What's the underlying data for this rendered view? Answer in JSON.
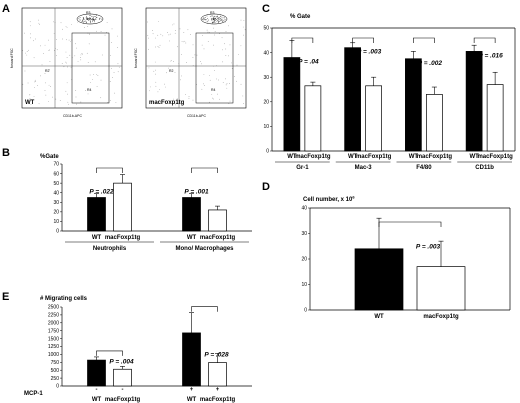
{
  "panels": {
    "A": {
      "letter": "A",
      "plots": [
        {
          "corner_label": "WT",
          "ylabel": "forward FSC",
          "xlabel": "CD11b-APC",
          "gate_top": "R3",
          "gate_left": "R2",
          "gate_box": "R4"
        },
        {
          "corner_label": "macFoxp1tg",
          "ylabel": "forward FSC",
          "xlabel": "CD11b-APC",
          "gate_top": "R3",
          "gate_left": "R2",
          "gate_box": "R4"
        }
      ]
    },
    "B": {
      "letter": "B",
      "y_title": "%Gate",
      "chart_data": {
        "type": "bar",
        "y_title": "%Gate",
        "ylim": [
          0,
          70
        ],
        "yticks": [
          "0",
          "10",
          "20",
          "30",
          "40",
          "50",
          "60",
          "70"
        ],
        "groups": [
          {
            "name": "Neutrophils",
            "labels": [
              "WT",
              "macFoxp1tg"
            ],
            "values": [
              35,
              50
            ],
            "errors": [
              4,
              9
            ],
            "pvalue": "P = .022"
          },
          {
            "name": "Mono/ Macrophages",
            "labels": [
              "WT",
              "macFoxp1tg"
            ],
            "values": [
              35,
              22
            ],
            "errors": [
              4,
              4
            ],
            "pvalue": "P = .001"
          }
        ]
      }
    },
    "C": {
      "letter": "C",
      "y_title": "% Gate",
      "chart_data": {
        "type": "bar",
        "y_title": "% Gate",
        "ylim": [
          0,
          50
        ],
        "yticks": [
          "0",
          "10",
          "20",
          "30",
          "40",
          "50"
        ],
        "groups": [
          {
            "name": "Gr-1",
            "labels": [
              "WT",
              "macFoxp1tg"
            ],
            "values": [
              38,
              26.5
            ],
            "errors": [
              7,
              1.5
            ],
            "pvalue": "P = .04"
          },
          {
            "name": "Mac-3",
            "labels": [
              "WT",
              "macFoxp1tg"
            ],
            "values": [
              42,
              26.5
            ],
            "errors": [
              2,
              3.5
            ],
            "pvalue": "P = .003"
          },
          {
            "name": "F4/80",
            "labels": [
              "WT",
              "macFoxp1tg"
            ],
            "values": [
              37.5,
              23
            ],
            "errors": [
              3,
              3
            ],
            "pvalue": "P = .002"
          },
          {
            "name": "CD11b",
            "labels": [
              "WT",
              "macFoxp1tg"
            ],
            "values": [
              40.5,
              27
            ],
            "errors": [
              2.5,
              5
            ],
            "pvalue": "P = .016"
          }
        ]
      }
    },
    "D": {
      "letter": "D",
      "y_title": "Cell number, x 10",
      "y_title_sup": "6",
      "chart_data": {
        "type": "bar",
        "y_title": "Cell number, x 10^6",
        "ylim": [
          0,
          40
        ],
        "yticks": [
          "0",
          "10",
          "20",
          "30",
          "40"
        ],
        "groups": [
          {
            "name": "",
            "labels": [
              "WT",
              "macFoxp1tg"
            ],
            "values": [
              24,
              17
            ],
            "errors": [
              12,
              10
            ],
            "pvalue": "P = .003"
          }
        ]
      }
    },
    "E": {
      "letter": "E",
      "y_title": "# Migrating cells",
      "row_label": "MCP-1",
      "chart_data": {
        "type": "bar",
        "y_title": "# Migrating cells",
        "ylim": [
          0,
          2500
        ],
        "yticks": [
          "0",
          "250",
          "500",
          "750",
          "1000",
          "1250",
          "1500",
          "1750",
          "2000",
          "2250",
          "2500"
        ],
        "groups": [
          {
            "name": "",
            "labels": [
              "WT",
              "macFoxp1tg"
            ],
            "mcp": [
              "-",
              "-"
            ],
            "values": [
              820,
              530
            ],
            "errors": [
              100,
              90
            ],
            "pvalue": "P = .004"
          },
          {
            "name": "",
            "labels": [
              "WT",
              "macFoxp1tg"
            ],
            "mcp": [
              "+",
              "+"
            ],
            "values": [
              1680,
              740
            ],
            "errors": [
              640,
              290
            ],
            "pvalue": "P = .028"
          }
        ]
      }
    }
  },
  "colors": {
    "filled": "#000000",
    "empty": "#ffffff",
    "axis": "#000000"
  }
}
